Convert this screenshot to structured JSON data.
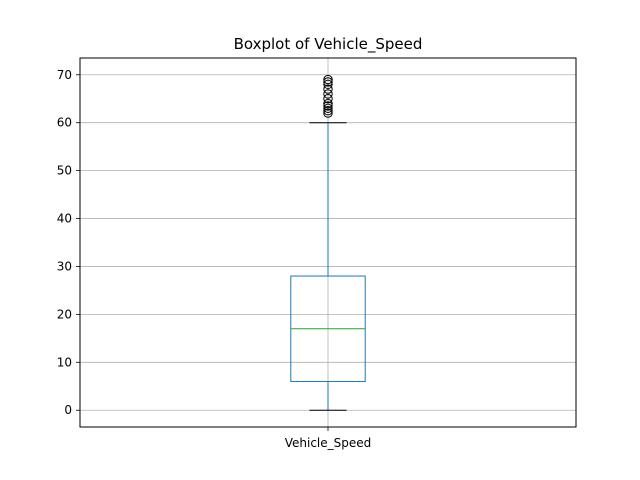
{
  "chart_data": {
    "type": "box",
    "title": "Boxplot of Vehicle_Speed",
    "xlabel": "",
    "ylabel": "",
    "categories": [
      "Vehicle_Speed"
    ],
    "ylim": [
      -3.5,
      73.5
    ],
    "yticks": [
      0,
      10,
      20,
      30,
      40,
      50,
      60,
      70
    ],
    "grid": true,
    "series": [
      {
        "whisker_low": 0,
        "q1": 6,
        "median": 17,
        "q3": 28,
        "whisker_high": 60,
        "outliers": [
          62,
          62.5,
          63,
          63.5,
          64,
          65,
          66,
          67,
          68,
          68.5,
          69
        ]
      }
    ],
    "colors": {
      "box": "#1f77b4",
      "median": "#2ca02c",
      "caps": "#000000",
      "grid": "#b0b0b0"
    }
  }
}
